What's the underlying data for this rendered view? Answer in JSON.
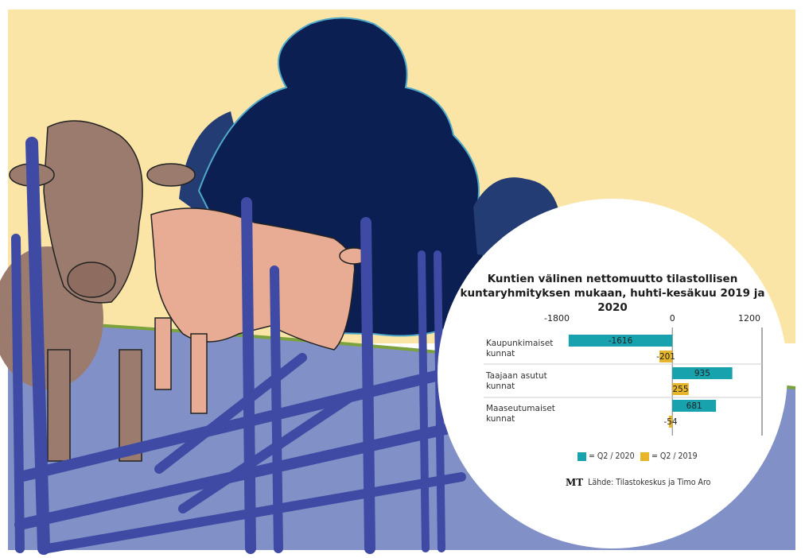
{
  "colors": {
    "sky": "#fbe5a6",
    "ground": "#8191c7",
    "fence": "#3e4aa3",
    "tree_dark": "#0c1f52",
    "tree_mid": "#243c74",
    "tree_outline": "#4fa9c9",
    "cow_brown": "#9b7b6d",
    "cow_pink": "#e7ac93",
    "grass": "#7ba23c",
    "series_2020": "#17a2ae",
    "series_2019": "#e6b52b"
  },
  "source_logo": "MT",
  "source_text": "Lähde: Tilastokeskus ja Timo Aro",
  "chart_data": {
    "type": "bar",
    "orientation": "horizontal",
    "title_lines": [
      "Kuntien välinen nettomuutto tilastollisen",
      "kuntaryhmityksen mukaan, huhti-kesäkuu 2019 ja 2020"
    ],
    "categories": [
      {
        "lines": [
          "Kaupunkimaiset",
          "kunnat"
        ]
      },
      {
        "lines": [
          "Taajaan asutut",
          "kunnat"
        ]
      },
      {
        "lines": [
          "Maaseutumaiset",
          "kunnat"
        ]
      }
    ],
    "series": [
      {
        "name": "= Q2 / 2020",
        "color": "#17a2ae",
        "values": [
          -1616,
          935,
          681
        ]
      },
      {
        "name": "= Q2 / 2019",
        "color": "#e6b52b",
        "values": [
          -201,
          255,
          -54
        ]
      }
    ],
    "xlim": [
      -1800,
      1200
    ],
    "ticks": [
      "-1800",
      "0",
      "1200"
    ],
    "grid": false,
    "legend_position": "bottom"
  }
}
